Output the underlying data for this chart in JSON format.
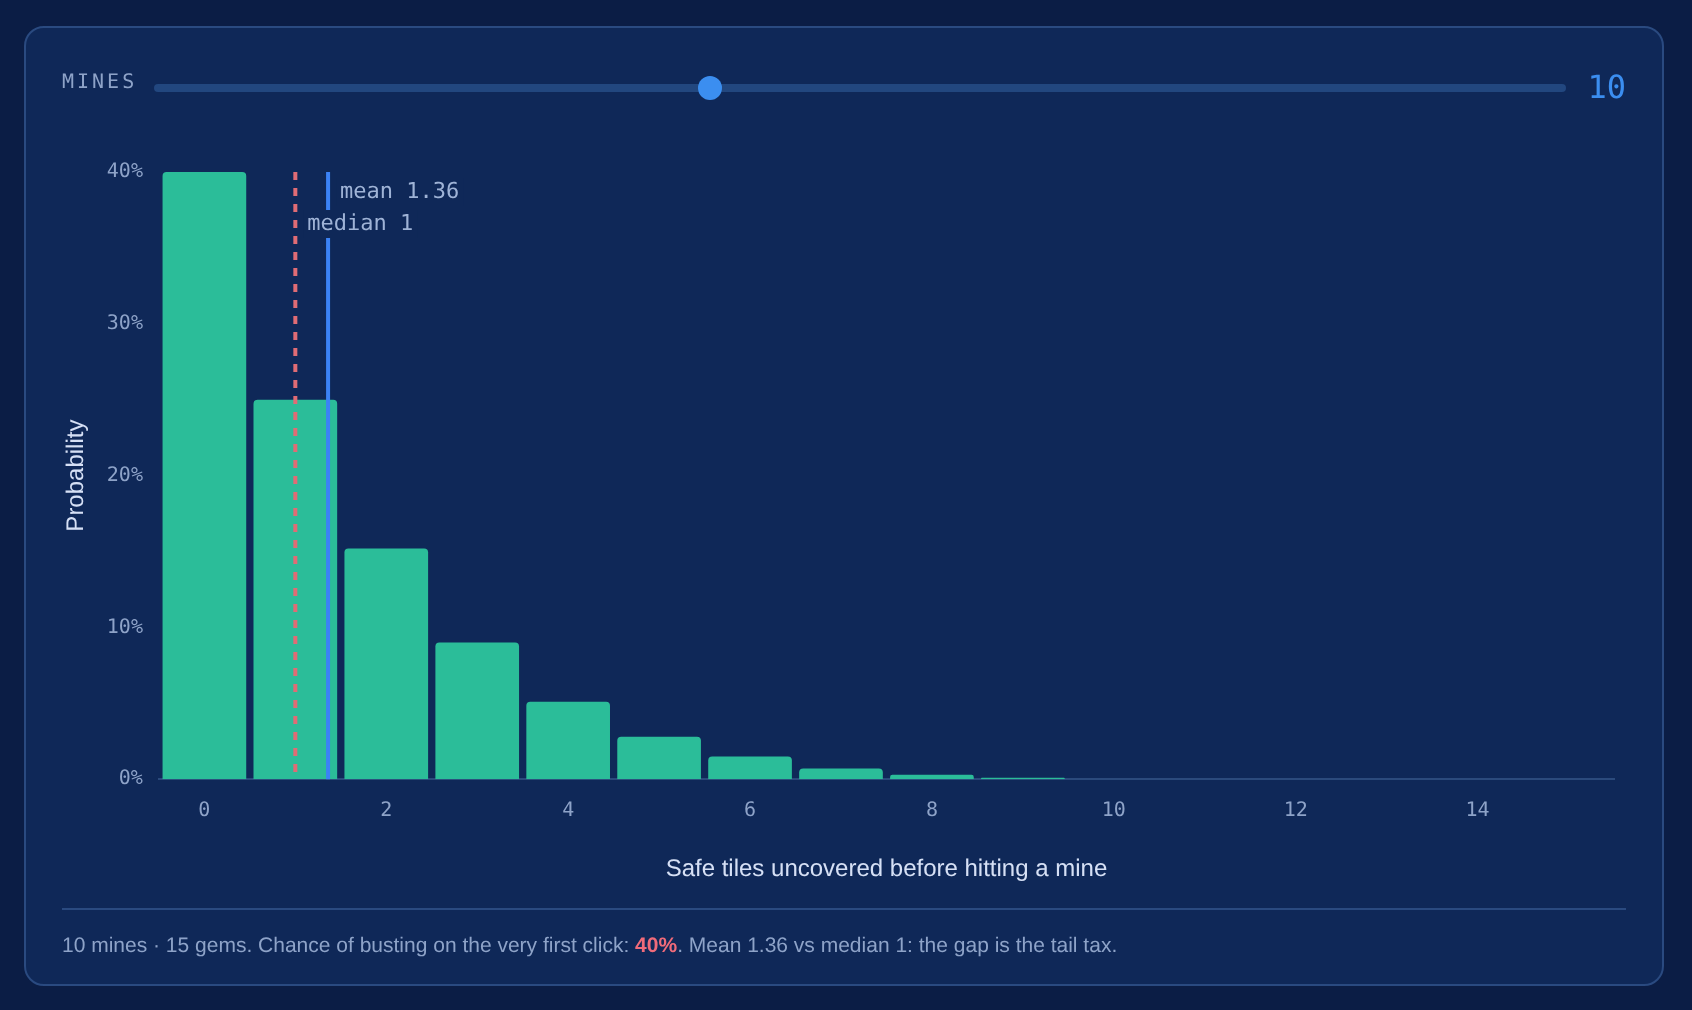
{
  "chart_data": {
    "type": "bar",
    "xlabel": "Safe tiles uncovered before hitting a mine",
    "ylabel": "Probability",
    "x": [
      0,
      1,
      2,
      3,
      4,
      5,
      6,
      7,
      8,
      9,
      10,
      11,
      12,
      13,
      14,
      15
    ],
    "values": [
      40,
      25,
      15.2,
      9,
      5.1,
      2.8,
      1.5,
      0.7,
      0.3,
      0.1,
      0,
      0,
      0,
      0,
      0,
      0
    ],
    "color": "#2bbd99",
    "xlim": [
      -0.5,
      15.5
    ],
    "xticks": [
      0,
      2,
      4,
      6,
      8,
      10,
      12,
      14
    ],
    "ylim": [
      0,
      40
    ],
    "yticks": [
      {
        "value": 0,
        "label": "0%"
      },
      {
        "value": 10,
        "label": "10%"
      },
      {
        "value": 20,
        "label": "20%"
      },
      {
        "value": 30,
        "label": "30%"
      },
      {
        "value": 40,
        "label": "40%"
      }
    ],
    "ref_lines": [
      {
        "axis": "x",
        "value": 1.36,
        "label": "mean 1.36",
        "color": "#3b82f6",
        "line_style": "solid"
      },
      {
        "axis": "x",
        "value": 1,
        "label": "median 1",
        "color": "#e06c75",
        "line_style": "dashed"
      }
    ],
    "annotations": [
      "MINES",
      "10",
      "10 mines · 15 gems. Chance of busting on the very first click: ",
      "40%",
      ". Mean 1.36 vs median 1: the gap is the tail tax."
    ],
    "legend": false
  }
}
